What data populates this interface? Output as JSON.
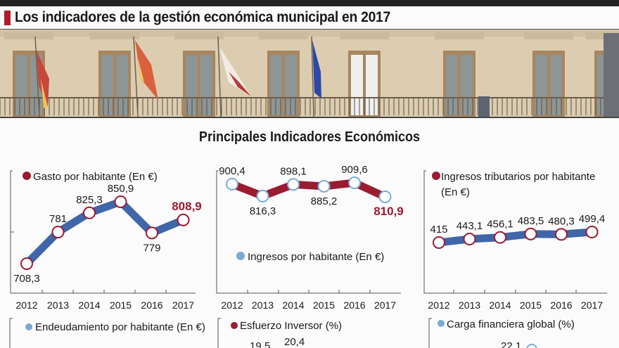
{
  "headline": "Los indicadores de la gestión económica municipal en 2017",
  "section_title": "Principales  Indicadores Económicos",
  "colors": {
    "accent_red": "#9b1b30",
    "blue_line": "#3f66a8",
    "light_blue_dot": "#7aaad4",
    "headline_mark": "#b01c2e"
  },
  "chart_data": [
    {
      "type": "line",
      "title": "Gasto por habitante (En €)",
      "legend_dot": "red",
      "categories": [
        "2012",
        "2013",
        "2014",
        "2015",
        "2016",
        "2017"
      ],
      "values": [
        708.3,
        781,
        825.3,
        850.9,
        779,
        808.9
      ],
      "labels": [
        "708,3",
        "781",
        "825,3",
        "850,9",
        "779",
        "808,9"
      ],
      "highlight_last": true
    },
    {
      "type": "line",
      "title": "Ingresos por habitante (En €)",
      "legend_dot": "light-blue",
      "categories": [
        "2012",
        "2013",
        "2014",
        "2015",
        "2016",
        "2017"
      ],
      "values": [
        900.4,
        816.3,
        898.1,
        885.2,
        909.6,
        810.9
      ],
      "labels": [
        "900,4",
        "816,3",
        "898,1",
        "885,2",
        "909,6",
        "810,9"
      ],
      "highlight_last": true
    },
    {
      "type": "line",
      "title": "Ingresos tributarios por habitante",
      "title_line2": "(En €)",
      "legend_dot": "red",
      "categories": [
        "2012",
        "2013",
        "2014",
        "2015",
        "2016",
        "2017"
      ],
      "values": [
        415,
        443.1,
        456.1,
        483.5,
        480.3,
        499.4
      ],
      "labels": [
        "415",
        "443,1",
        "456,1",
        "483,5",
        "480,3",
        "499,4"
      ],
      "highlight_last": false
    },
    {
      "type": "line",
      "title": "Endeudamiento por habitante  (En €)",
      "legend_dot": "light-blue"
    },
    {
      "type": "line",
      "title": "Esfuerzo Inversor (%)",
      "legend_dot": "red",
      "labels": [
        "19,5",
        "20,4"
      ]
    },
    {
      "type": "line",
      "title": "Carga financiera global (%)",
      "legend_dot": "light-blue",
      "labels": [
        "22,1"
      ]
    }
  ]
}
